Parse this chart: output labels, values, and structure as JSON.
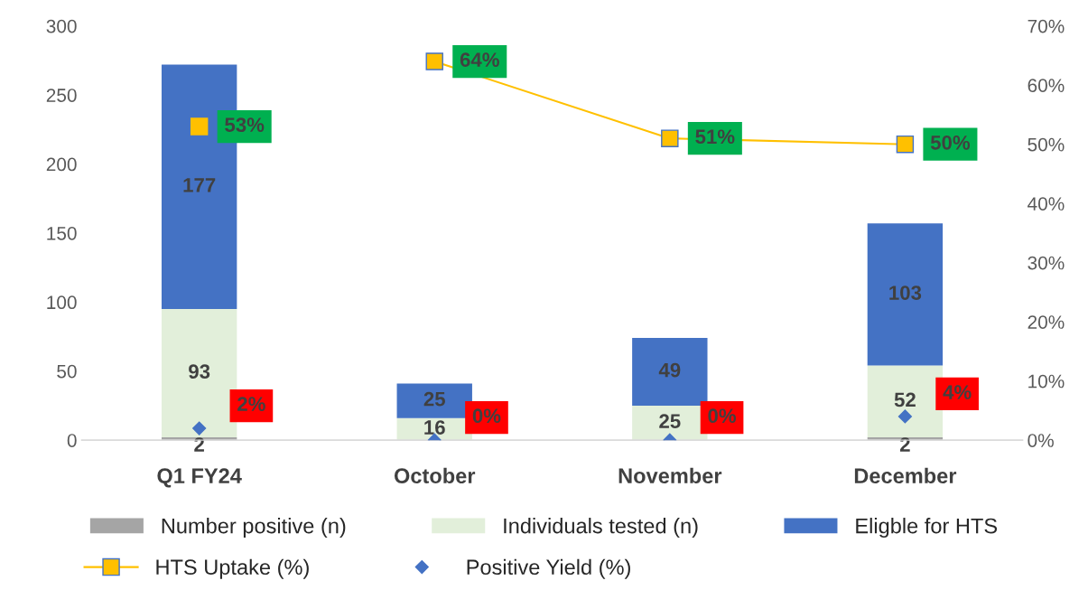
{
  "chart_data": {
    "type": "bar",
    "stacked": true,
    "categories": [
      "Q1 FY24",
      "October",
      "November",
      "December"
    ],
    "series": [
      {
        "name": "Number positive (n)",
        "color": "#a5a5a5",
        "values": [
          2,
          0,
          0,
          2
        ],
        "value_labels": [
          "2",
          null,
          null,
          "2"
        ]
      },
      {
        "name": "Individuals tested (n)",
        "color": "#e2efda",
        "values": [
          93,
          16,
          25,
          52
        ]
      },
      {
        "name": "Eligble for HTS",
        "color": "#4472c4",
        "values": [
          177,
          25,
          49,
          103
        ]
      },
      {
        "name": "HTS Uptake (%)",
        "type": "line",
        "axis": "y2",
        "marker": "square",
        "color": "#ffc000",
        "values": [
          null,
          64,
          51,
          50
        ],
        "value_labels": [
          null,
          "64%",
          "51%",
          "50%"
        ]
      },
      {
        "type": "scatter",
        "axis": "y2",
        "marker": "square",
        "color": "#ffc000",
        "values": [
          53,
          null,
          null,
          null
        ],
        "value_labels": [
          "53%",
          null,
          null,
          null
        ]
      },
      {
        "name": "Positive Yield (%)",
        "type": "scatter",
        "axis": "y2",
        "marker": "diamond",
        "color": "#4472c4",
        "values": [
          2,
          0,
          0,
          4
        ],
        "value_labels": [
          "2%",
          "0%",
          "0%",
          "4%"
        ]
      }
    ],
    "ylim": [
      0,
      300
    ],
    "yticks": [
      0,
      50,
      100,
      150,
      200,
      250,
      300
    ],
    "y2lim": [
      0,
      70
    ],
    "y2ticks": [
      {
        "value": 0,
        "label": "0%"
      },
      {
        "value": 10,
        "label": "10%"
      },
      {
        "value": 20,
        "label": "20%"
      },
      {
        "value": 30,
        "label": "30%"
      },
      {
        "value": 40,
        "label": "40%"
      },
      {
        "value": 50,
        "label": "50%"
      },
      {
        "value": 60,
        "label": "60%"
      },
      {
        "value": 70,
        "label": "70%"
      }
    ],
    "data_labels": true,
    "grid": false,
    "legend": "bottom"
  }
}
